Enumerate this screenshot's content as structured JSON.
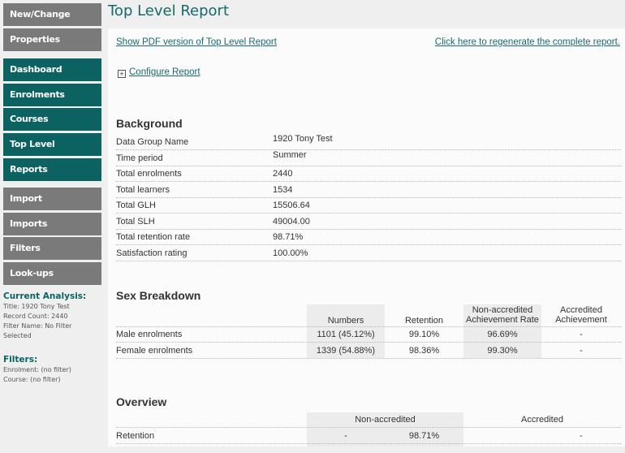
{
  "sidebar": {
    "top": [
      "New/Change",
      "Properties"
    ],
    "main": [
      "Dashboard",
      "Enrolments",
      "Courses",
      "Top Level",
      "Reports"
    ],
    "tools": [
      "Import",
      "Imports",
      "Filters",
      "Look-ups"
    ],
    "current_analysis": {
      "heading": "Current Analysis:",
      "title": "Title: 1920 Tony Test",
      "record_count": "Record Count: 2440",
      "filter_name": "Filter Name: No Filter Selected"
    },
    "filters": {
      "heading": "Filters:",
      "enrolment": "Enrolment: (no filter)",
      "course": "Course: (no filter)"
    }
  },
  "page_title": "Top Level Report",
  "links": {
    "pdf": "Show PDF version of Top Level Report",
    "regenerate": "Click here to regenerate the complete report.",
    "configure": "Configure Report"
  },
  "background": {
    "heading": "Background",
    "rows": [
      {
        "label": "Data Group Name",
        "value": "1920 Tony Test"
      },
      {
        "label": "Time period",
        "value": "Summer"
      },
      {
        "label": "Total enrolments",
        "value": "2440"
      },
      {
        "label": "Total learners",
        "value": "1534"
      },
      {
        "label": "Total GLH",
        "value": "15506.64"
      },
      {
        "label": "Total SLH",
        "value": "49004.00"
      },
      {
        "label": "Total retention rate",
        "value": "98.71%"
      },
      {
        "label": "Satisfaction rating",
        "value": "100.00%"
      }
    ]
  },
  "sex": {
    "heading": "Sex Breakdown",
    "columns": [
      "Numbers",
      "Retention",
      "Non-accredited Achievement Rate",
      "Accredited Achievement"
    ],
    "rows": [
      {
        "label": "Male enrolments",
        "cells": [
          "1101 (45.12%)",
          "99.10%",
          "96.69%",
          "-"
        ]
      },
      {
        "label": "Female enrolments",
        "cells": [
          "1339 (54.88%)",
          "98.36%",
          "99.30%",
          "-"
        ]
      }
    ]
  },
  "overview": {
    "heading": "Overview",
    "groups": [
      "Non-accredited",
      "Accredited"
    ],
    "rows": [
      {
        "label": "Retention",
        "cells": [
          "-",
          "98.71%",
          "",
          "-"
        ]
      }
    ]
  }
}
